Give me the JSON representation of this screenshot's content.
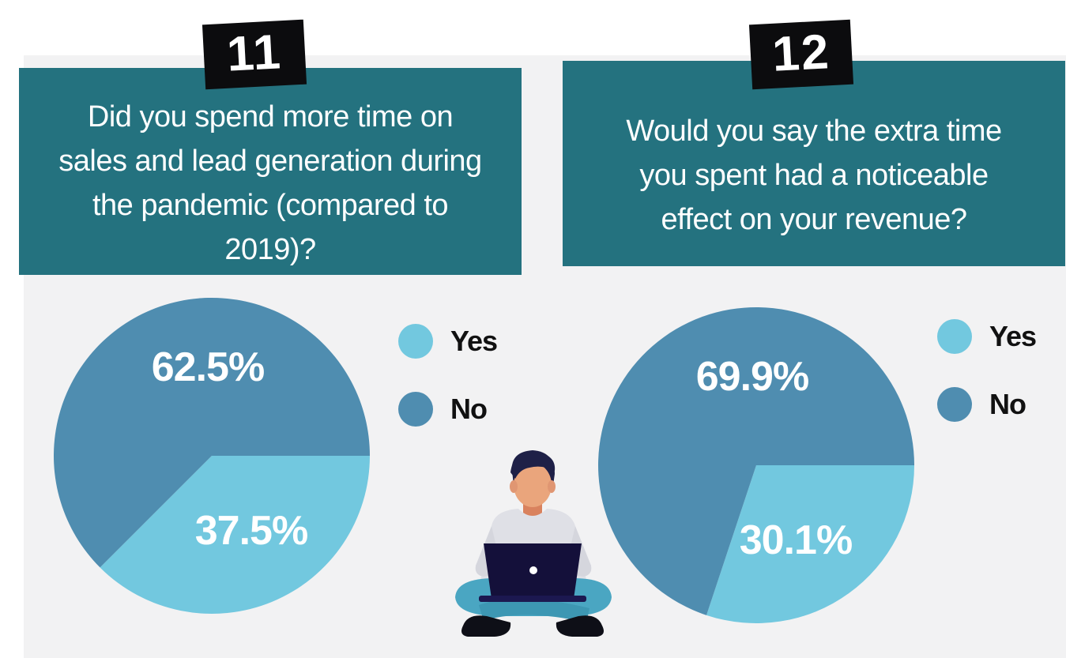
{
  "colors": {
    "header_bg": "#24727f",
    "panel_bg": "#f2f2f3",
    "yes": "#72c8df",
    "no": "#4f8db0",
    "badge_bg": "#0c0c0e"
  },
  "panels": [
    {
      "number": "11",
      "question": "Did you spend more time on sales and lead generation during the pandemic (compared to 2019)?"
    },
    {
      "number": "12",
      "question": "Would you say the extra time you spent had a noticeable effect on your revenue?"
    }
  ],
  "legend": {
    "yes_label": "Yes",
    "no_label": "No"
  },
  "chart_data": [
    {
      "type": "pie",
      "categories": [
        "Yes",
        "No"
      ],
      "values": [
        37.5,
        62.5
      ],
      "data_labels": [
        "37.5%",
        "62.5%"
      ],
      "legend_position": "right"
    },
    {
      "type": "pie",
      "categories": [
        "Yes",
        "No"
      ],
      "values": [
        30.1,
        69.9
      ],
      "data_labels": [
        "30.1%",
        "69.9%"
      ],
      "legend_position": "right"
    }
  ],
  "illustration": {
    "icon": "person-with-laptop-icon"
  }
}
